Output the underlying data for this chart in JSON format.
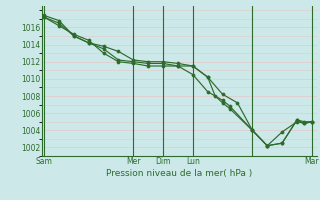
{
  "xlabel": "Pression niveau de la mer( hPa )",
  "bg_color": "#cce8e8",
  "grid_color": "#e8c8c8",
  "line_color": "#2d6b2d",
  "ylim": [
    1001.0,
    1018.5
  ],
  "yticks": [
    1002,
    1004,
    1006,
    1008,
    1010,
    1012,
    1014,
    1016
  ],
  "xlim": [
    -2,
    220
  ],
  "day_positions": [
    0,
    72,
    96,
    120,
    168,
    216
  ],
  "day_labels": [
    "Sam",
    "Mer",
    "Dim",
    "Lun",
    "",
    "Mar"
  ],
  "series1": [
    [
      0,
      1017.4
    ],
    [
      12,
      1016.8
    ],
    [
      24,
      1015.0
    ],
    [
      36,
      1014.2
    ],
    [
      48,
      1013.5
    ],
    [
      60,
      1012.2
    ],
    [
      72,
      1012.0
    ],
    [
      84,
      1011.8
    ],
    [
      96,
      1011.8
    ],
    [
      108,
      1011.5
    ],
    [
      120,
      1011.5
    ],
    [
      132,
      1010.2
    ],
    [
      144,
      1008.2
    ],
    [
      156,
      1007.2
    ],
    [
      168,
      1004.0
    ],
    [
      180,
      1002.2
    ],
    [
      192,
      1002.5
    ],
    [
      204,
      1005.2
    ],
    [
      210,
      1005.0
    ],
    [
      216,
      1005.0
    ]
  ],
  "series2": [
    [
      0,
      1017.2
    ],
    [
      12,
      1016.2
    ],
    [
      24,
      1015.2
    ],
    [
      36,
      1014.5
    ],
    [
      48,
      1013.0
    ],
    [
      60,
      1012.0
    ],
    [
      72,
      1011.8
    ],
    [
      84,
      1011.5
    ],
    [
      96,
      1011.5
    ],
    [
      108,
      1011.5
    ],
    [
      120,
      1010.5
    ],
    [
      132,
      1008.5
    ],
    [
      144,
      1007.5
    ],
    [
      150,
      1006.8
    ],
    [
      168,
      1004.0
    ],
    [
      180,
      1002.2
    ],
    [
      192,
      1002.5
    ],
    [
      204,
      1005.2
    ],
    [
      210,
      1004.8
    ],
    [
      216,
      1005.0
    ]
  ],
  "series3": [
    [
      0,
      1017.2
    ],
    [
      12,
      1016.5
    ],
    [
      24,
      1015.0
    ],
    [
      36,
      1014.2
    ],
    [
      48,
      1013.8
    ],
    [
      60,
      1013.2
    ],
    [
      72,
      1012.2
    ],
    [
      84,
      1012.0
    ],
    [
      96,
      1012.0
    ],
    [
      108,
      1011.8
    ],
    [
      120,
      1011.5
    ],
    [
      132,
      1010.2
    ],
    [
      138,
      1008.0
    ],
    [
      144,
      1007.2
    ],
    [
      150,
      1006.5
    ],
    [
      168,
      1004.0
    ],
    [
      180,
      1002.2
    ],
    [
      192,
      1003.8
    ],
    [
      204,
      1005.0
    ],
    [
      210,
      1004.8
    ],
    [
      216,
      1005.0
    ]
  ]
}
